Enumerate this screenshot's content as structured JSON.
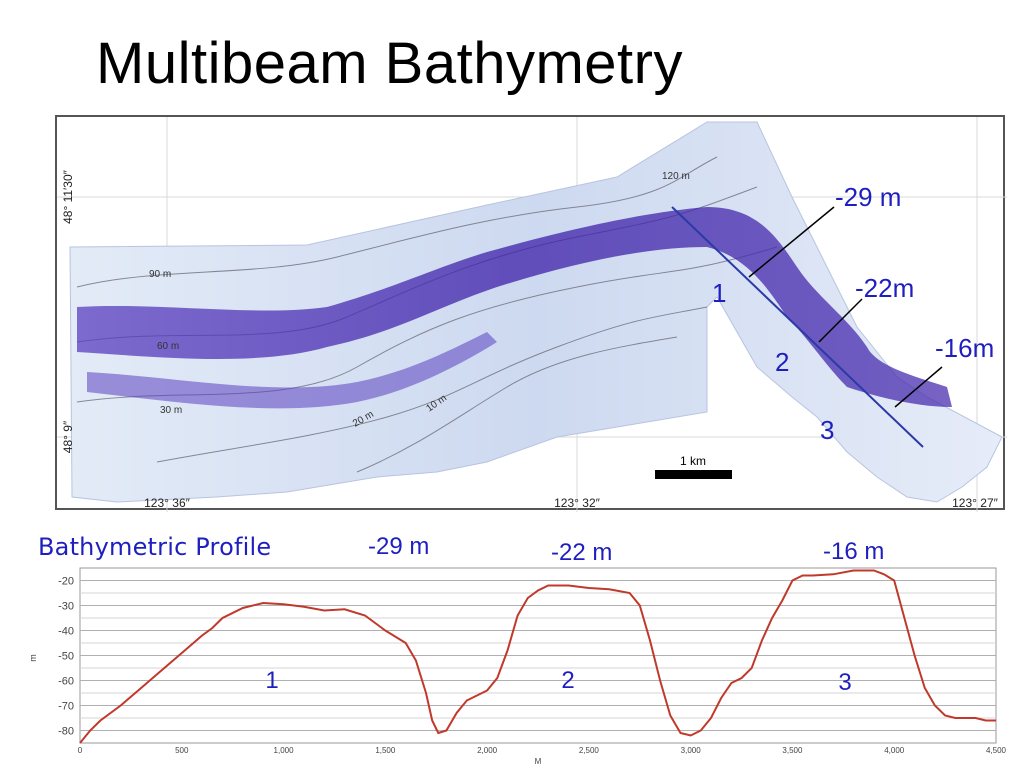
{
  "slide": {
    "title": "Multibeam Bathymetry"
  },
  "map": {
    "lat_labels": [
      "48° 11′30″",
      "48° 9″"
    ],
    "lon_labels": [
      "123° 36″",
      "123° 32″",
      "123° 27″"
    ],
    "contour_labels": [
      "120 m",
      "90 m",
      "60 m",
      "30 m",
      "20 m",
      "10 m"
    ],
    "scale_bar_label": "1 km",
    "profile_numbers": [
      "1",
      "2",
      "3"
    ],
    "depth_callouts": [
      "-29 m",
      "-22m",
      "-16m"
    ],
    "colors": {
      "deep": "#4a2fb0",
      "shallow": "#dfe9f7",
      "profile_line": "#2a3aa8"
    }
  },
  "profile": {
    "title": "Bathymetric Profile",
    "peak_labels": [
      "-29 m",
      "-22 m",
      "-16 m"
    ],
    "segment_numbers": [
      "1",
      "2",
      "3"
    ],
    "ylabel": "m",
    "xlabel": "M",
    "line_color": "#c0392b"
  },
  "chart_data": {
    "type": "line",
    "title": "Bathymetric Profile",
    "xlabel": "M",
    "ylabel": "m",
    "xlim": [
      0,
      4500
    ],
    "ylim": [
      -85,
      -15
    ],
    "x_ticks": [
      0,
      500,
      1000,
      1500,
      2000,
      2500,
      3000,
      3500,
      4000,
      4500
    ],
    "x_tick_labels": [
      "0",
      "500",
      "1,000",
      "1,500",
      "2,000",
      "2,500",
      "3,000",
      "3,500",
      "4,000",
      "4,500"
    ],
    "y_ticks": [
      -20,
      -30,
      -40,
      -50,
      -60,
      -70,
      -80
    ],
    "y_tick_labels": [
      "-20",
      "-30",
      "-40",
      "-50",
      "-60",
      "-70",
      "-80"
    ],
    "grid": true,
    "series": [
      {
        "x": [
          0,
          50,
          100,
          200,
          300,
          400,
          500,
          600,
          650,
          700,
          800,
          900,
          1000,
          1100,
          1200,
          1300,
          1400,
          1500,
          1600,
          1650,
          1700,
          1730,
          1760,
          1800,
          1850,
          1900,
          2000,
          2050,
          2100,
          2150,
          2200,
          2250,
          2300,
          2400,
          2500,
          2600,
          2700,
          2750,
          2800,
          2850,
          2900,
          2950,
          3000,
          3050,
          3100,
          3150,
          3200,
          3250,
          3300,
          3350,
          3400,
          3450,
          3500,
          3550,
          3600,
          3700,
          3800,
          3900,
          3950,
          4000,
          4050,
          4100,
          4150,
          4200,
          4250,
          4300,
          4350,
          4400,
          4450,
          4500
        ],
        "y": [
          -85,
          -80,
          -76,
          -70,
          -63,
          -56,
          -49,
          -42,
          -39,
          -35,
          -31,
          -29,
          -29.5,
          -30.5,
          -32,
          -31.5,
          -34,
          -40,
          -45,
          -52,
          -65,
          -76,
          -81,
          -80,
          -73,
          -68,
          -64,
          -59,
          -48,
          -34,
          -27,
          -24,
          -22,
          -22,
          -23,
          -23.5,
          -25,
          -30,
          -44,
          -60,
          -74,
          -81,
          -82,
          -80,
          -75,
          -67,
          -61,
          -59,
          -55,
          -44,
          -35,
          -28,
          -20,
          -18,
          -18,
          -17.5,
          -16,
          -16,
          -17.5,
          -20,
          -35,
          -50,
          -63,
          -70,
          -74,
          -75,
          -75,
          -75,
          -76,
          -76
        ]
      }
    ]
  }
}
